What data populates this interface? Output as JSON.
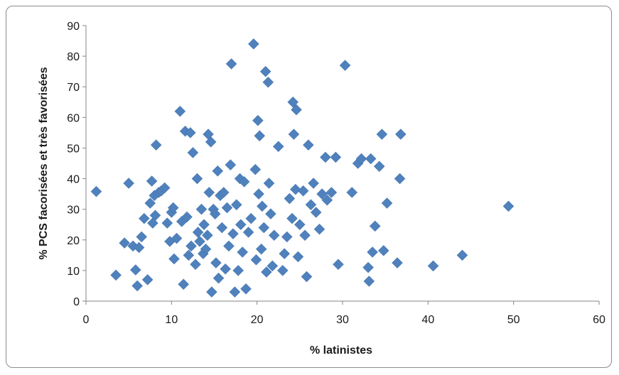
{
  "chart_data": {
    "type": "scatter",
    "title": "",
    "xlabel": "% latinistes",
    "ylabel": "% PCS facorisées et très favorisées",
    "xlim": [
      0,
      60
    ],
    "ylim": [
      0,
      90
    ],
    "xticks": [
      0,
      10,
      20,
      30,
      40,
      50,
      60
    ],
    "yticks": [
      0,
      10,
      20,
      30,
      40,
      50,
      60,
      70,
      80,
      90
    ],
    "grid": false,
    "legend": "none",
    "marker": "diamond",
    "color": "#4F81BD",
    "points": [
      [
        1.2,
        35.8
      ],
      [
        3.5,
        8.5
      ],
      [
        4.5,
        19
      ],
      [
        5,
        38.5
      ],
      [
        5.5,
        18
      ],
      [
        5.8,
        10.2
      ],
      [
        6,
        5
      ],
      [
        6.2,
        17.5
      ],
      [
        6.5,
        21
      ],
      [
        6.8,
        27
      ],
      [
        7.2,
        7
      ],
      [
        7.5,
        32
      ],
      [
        7.7,
        39.2
      ],
      [
        7.8,
        25.5
      ],
      [
        8,
        34.5
      ],
      [
        8.1,
        28
      ],
      [
        8.2,
        51
      ],
      [
        8.5,
        35.5
      ],
      [
        8.8,
        36
      ],
      [
        9.2,
        37
      ],
      [
        9.5,
        25.5
      ],
      [
        9.8,
        19.5
      ],
      [
        10,
        29
      ],
      [
        10.2,
        30.5
      ],
      [
        10.3,
        13.8
      ],
      [
        10.6,
        20.5
      ],
      [
        11,
        62
      ],
      [
        11.2,
        26
      ],
      [
        11.4,
        5.5
      ],
      [
        11.6,
        55.5
      ],
      [
        11.8,
        27.5
      ],
      [
        12,
        15
      ],
      [
        12.2,
        55
      ],
      [
        12.3,
        18
      ],
      [
        12.5,
        48.5
      ],
      [
        12.8,
        12
      ],
      [
        13,
        40
      ],
      [
        13.1,
        22.5
      ],
      [
        13.3,
        19.5
      ],
      [
        13.5,
        30
      ],
      [
        13.7,
        15.5
      ],
      [
        13.8,
        25
      ],
      [
        14,
        17
      ],
      [
        14.2,
        21.5
      ],
      [
        14.3,
        54.5
      ],
      [
        14.4,
        35.5
      ],
      [
        14.6,
        52
      ],
      [
        14.7,
        3
      ],
      [
        14.9,
        30
      ],
      [
        15.1,
        28.5
      ],
      [
        15.2,
        12.5
      ],
      [
        15.4,
        42.5
      ],
      [
        15.5,
        7.5
      ],
      [
        15.7,
        34.5
      ],
      [
        15.9,
        24
      ],
      [
        16.1,
        35.5
      ],
      [
        16.3,
        10.5
      ],
      [
        16.5,
        30.5
      ],
      [
        16.7,
        18
      ],
      [
        16.9,
        44.5
      ],
      [
        17,
        77.5
      ],
      [
        17.2,
        22
      ],
      [
        17.4,
        3
      ],
      [
        17.6,
        31.5
      ],
      [
        17.8,
        10
      ],
      [
        18,
        40
      ],
      [
        18.1,
        25
      ],
      [
        18.3,
        16
      ],
      [
        18.5,
        39
      ],
      [
        18.7,
        4
      ],
      [
        19,
        22.5
      ],
      [
        19.3,
        27
      ],
      [
        19.6,
        84
      ],
      [
        19.8,
        43
      ],
      [
        19.9,
        13.5
      ],
      [
        20.1,
        59
      ],
      [
        20.2,
        35
      ],
      [
        20.3,
        54
      ],
      [
        20.5,
        17
      ],
      [
        20.6,
        31
      ],
      [
        20.8,
        24
      ],
      [
        21,
        75
      ],
      [
        21.1,
        9.5
      ],
      [
        21.3,
        71.5
      ],
      [
        21.4,
        38.5
      ],
      [
        21.6,
        28.5
      ],
      [
        21.8,
        11.5
      ],
      [
        22,
        21.5
      ],
      [
        22.5,
        50.5
      ],
      [
        23,
        10
      ],
      [
        23.2,
        15.5
      ],
      [
        23.5,
        21
      ],
      [
        23.8,
        33.5
      ],
      [
        24.1,
        27
      ],
      [
        24.2,
        65
      ],
      [
        24.3,
        54.5
      ],
      [
        24.5,
        36.5
      ],
      [
        24.6,
        62.5
      ],
      [
        24.8,
        14.5
      ],
      [
        25,
        25
      ],
      [
        25.4,
        36
      ],
      [
        25.6,
        21.5
      ],
      [
        25.8,
        8
      ],
      [
        26,
        51
      ],
      [
        26.3,
        31.5
      ],
      [
        26.6,
        38.5
      ],
      [
        26.9,
        29
      ],
      [
        27.3,
        23.5
      ],
      [
        27.6,
        35
      ],
      [
        28,
        47
      ],
      [
        28.2,
        33
      ],
      [
        28.7,
        35.5
      ],
      [
        29.2,
        47
      ],
      [
        29.5,
        12
      ],
      [
        30.3,
        77
      ],
      [
        31.1,
        35.5
      ],
      [
        31.8,
        45
      ],
      [
        32.2,
        46.5
      ],
      [
        33,
        11
      ],
      [
        33.1,
        6.5
      ],
      [
        33.3,
        46.5
      ],
      [
        33.5,
        16
      ],
      [
        33.8,
        24.5
      ],
      [
        34.3,
        44
      ],
      [
        34.6,
        54.5
      ],
      [
        34.8,
        16.5
      ],
      [
        35.2,
        32
      ],
      [
        36.4,
        12.5
      ],
      [
        36.7,
        40
      ],
      [
        36.8,
        54.5
      ],
      [
        40.6,
        11.5
      ],
      [
        44,
        15
      ],
      [
        49.4,
        31
      ]
    ]
  }
}
